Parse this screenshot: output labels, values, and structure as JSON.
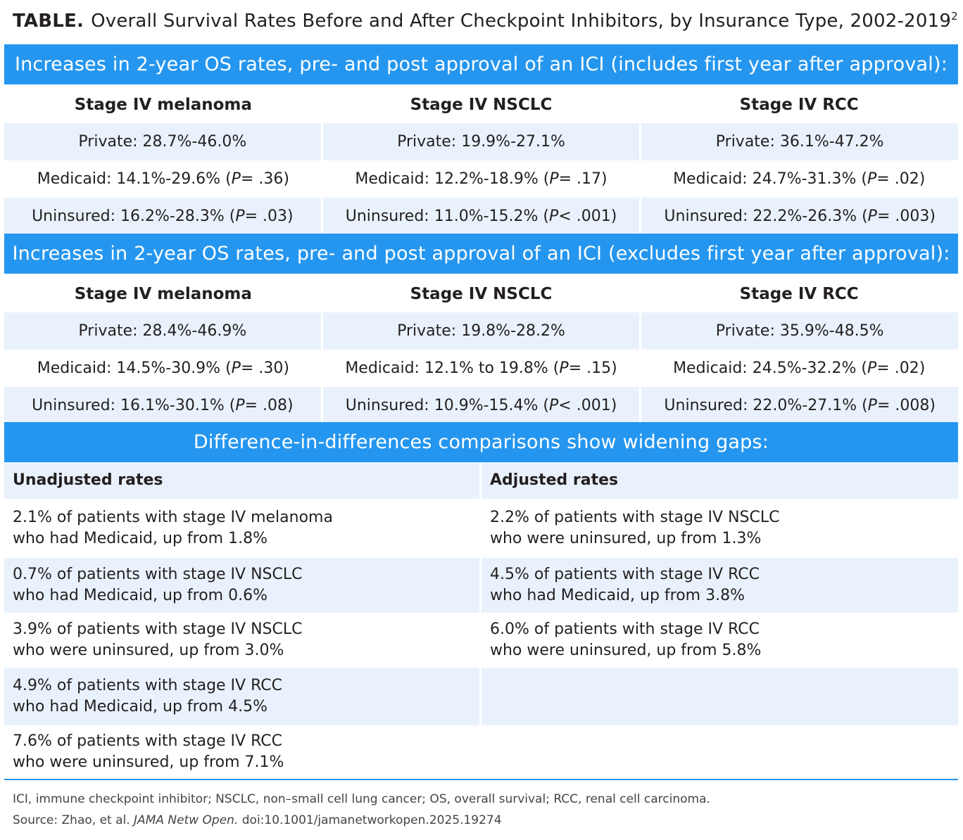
{
  "title": {
    "label": "TABLE.",
    "text": "Overall Survival Rates Before and After Checkpoint Inhibitors, by Insurance Type, 2002-2019",
    "ref": "2"
  },
  "section1": {
    "header": "Increases in 2-year OS rates, pre- and post approval of an ICI (includes first year after approval):",
    "columns": [
      "Stage IV melanoma",
      "Stage IV NSCLC",
      "Stage IV RCC"
    ],
    "rows": [
      [
        "Private: 28.7%-46.0%",
        "Private: 19.9%-27.1%",
        "Private: 36.1%-47.2%"
      ],
      [
        "Medicaid: 14.1%-29.6% (P = .36)",
        "Medicaid: 12.2%-18.9% (P = .17)",
        "Medicaid: 24.7%-31.3% (P = .02)"
      ],
      [
        "Uninsured: 16.2%-28.3% (P = .03)",
        "Uninsured: 11.0%-15.2% (P < .001)",
        "Uninsured: 22.2%-26.3% (P = .003)"
      ]
    ]
  },
  "section2": {
    "header": "Increases in 2-year OS rates, pre- and post approval of an ICI (excludes first year after approval):",
    "columns": [
      "Stage IV melanoma",
      "Stage IV NSCLC",
      "Stage IV RCC"
    ],
    "rows": [
      [
        "Private: 28.4%-46.9%",
        "Private: 19.8%-28.2%",
        "Private: 35.9%-48.5%"
      ],
      [
        "Medicaid: 14.5%-30.9% (P = .30)",
        "Medicaid: 12.1% to 19.8% (P = .15)",
        "Medicaid: 24.5%-32.2% (P = .02)"
      ],
      [
        "Uninsured: 16.1%-30.1% (P = .08)",
        "Uninsured: 10.9%-15.4% (P < .001)",
        "Uninsured: 22.0%-27.1% (P = .008)"
      ]
    ]
  },
  "section3": {
    "header": "Difference-in-differences comparisons show widening gaps:",
    "columns": [
      "Unadjusted rates",
      "Adjusted rates"
    ],
    "rows": [
      [
        [
          "2.1% of patients with stage IV melanoma",
          "who had Medicaid, up from 1.8%"
        ],
        [
          "2.2% of patients with stage IV NSCLC",
          "who were uninsured, up from 1.3%"
        ]
      ],
      [
        [
          "0.7% of patients with stage IV NSCLC",
          "who had Medicaid, up from 0.6%"
        ],
        [
          "4.5% of patients with stage IV RCC",
          "who had Medicaid, up from 3.8%"
        ]
      ],
      [
        [
          "3.9% of patients with stage IV NSCLC",
          "who were uninsured, up from 3.0%"
        ],
        [
          "6.0% of patients with stage IV RCC",
          "who were uninsured, up from 5.8%"
        ]
      ],
      [
        [
          "4.9% of patients with stage IV RCC",
          "who had Medicaid, up from 4.5%"
        ],
        [
          "",
          ""
        ]
      ],
      [
        [
          "7.6% of patients with stage IV RCC",
          "who were uninsured, up from 7.1%"
        ],
        [
          "",
          ""
        ]
      ]
    ]
  },
  "footnote": {
    "abbreviations": "ICI, immune checkpoint inhibitor; NSCLC, non–small cell lung cancer; OS, overall survival; RCC, renal cell carcinoma.",
    "source_prefix": "Source: Zhao, et al.",
    "source_journal": "JAMA Netw Open.",
    "source_doi": "doi:10.1001/jamanetworkopen.2025.19274"
  },
  "colors": {
    "band": "#2596ef",
    "shade": "#e9f2fc",
    "text": "#231f20"
  }
}
